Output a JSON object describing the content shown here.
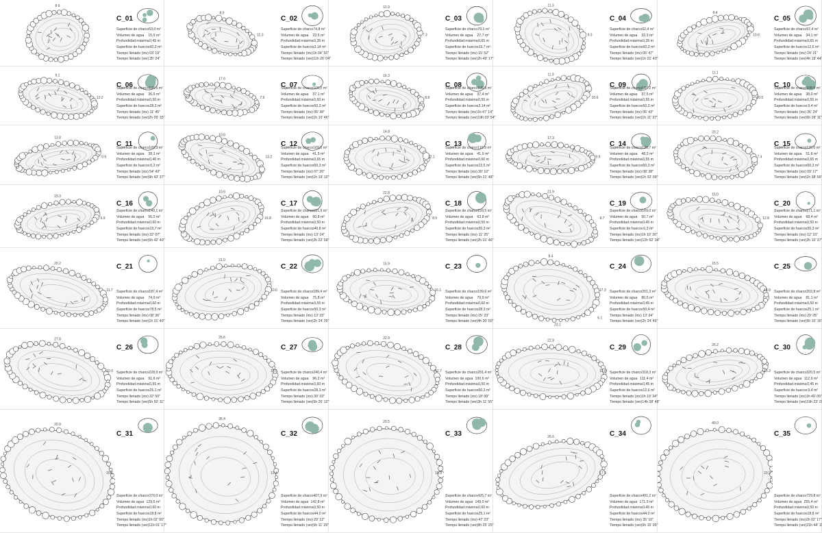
{
  "field_labels": [
    "Superficie de charco",
    "Volumen de agua",
    "Profundidad máxima",
    "Superficie de huecos",
    "Tiempo llenado (inv)",
    "Tiempo llenado (ver)"
  ],
  "cards": [
    {
      "id": "C_01",
      "values": [
        "53,0 m²",
        "15,9 m³",
        "0,45 m",
        "50,3 m²",
        "03' 19\"",
        "35' 24\""
      ],
      "dims": [
        "8.6"
      ]
    },
    {
      "id": "C_02",
      "values": [
        "74,8 m²",
        "22,5 m³",
        "0,35 m",
        "3,14 m²",
        "1h 04' 16\"",
        "11h 26' 04\""
      ],
      "dims": [
        "8.5",
        "11.3"
      ]
    },
    {
      "id": "C_03",
      "values": [
        "79,1 m²",
        "27,7 m³",
        "0,65 m",
        "15,7 m²",
        "15' 52\"",
        "2h 49' 17\""
      ],
      "dims": [
        "12.9",
        "7.3"
      ]
    },
    {
      "id": "C_04",
      "values": [
        "92,4 m²",
        "32,3 m³",
        "0,35 m",
        "50,3 m²",
        "05' 47\"",
        "1h 01' 43\""
      ],
      "dims": [
        "11.3",
        "9.3"
      ]
    },
    {
      "id": "C_05",
      "values": [
        "97,4 m²",
        "34,1 m³",
        "0,65 m",
        "12,6 m²",
        "24' 21\"",
        "4h 19' 44\""
      ],
      "dims": [
        "8.4",
        "10.6"
      ]
    },
    {
      "id": "C_06",
      "values": [
        "105,5 m²",
        "36,9 m³",
        "0,50 m",
        "28,3 m²",
        "11' 45\"",
        "2h 05' 15\""
      ],
      "dims": [
        "9.1",
        "12.2"
      ]
    },
    {
      "id": "C_07",
      "values": [
        "106,0 m²",
        "37,1 m³",
        "0,60 m",
        "50,3 m²",
        "06' 38\"",
        "1h 10' 46\""
      ],
      "dims": [
        "17.6",
        "7.9"
      ]
    },
    {
      "id": "C_08",
      "values": [
        "106,9 m²",
        "37,4 m³",
        "0,55 m",
        "3,14 m²",
        "1h 47' 14\"",
        "19h 03' 54\""
      ],
      "dims": [
        "16.3",
        "8.8"
      ]
    },
    {
      "id": "C_09",
      "values": [
        "107,2 m²",
        "37,5 m³",
        "0,55 m",
        "50,3 m²",
        "06' 43\"",
        "1h 11' 37\""
      ],
      "dims": [
        "11.9",
        "10.6"
      ]
    },
    {
      "id": "C_10",
      "values": [
        "108,6 m²",
        "38,0 m³",
        "0,55 m",
        "9,4 m²",
        "36' 24\"",
        "6h 28' 11\""
      ],
      "dims": [
        "11.1",
        "10.5"
      ]
    },
    {
      "id": "C_11",
      "values": [
        "109,3 m²",
        "38,3 m³",
        "0,40 m",
        "6,3 m²",
        "54' 43\"",
        "9h 43' 37\""
      ],
      "dims": [
        "13.8",
        "9.9"
      ]
    },
    {
      "id": "C_12",
      "values": [
        "109,5 m²",
        "41,5 m³",
        "0,65 m",
        "50,3 m²",
        "07' 26\"",
        "1h 19' 12\""
      ],
      "dims": [
        "10.8",
        "13.2"
      ]
    },
    {
      "id": "C_13",
      "values": [
        "110,9 m²",
        "41,9 m³",
        "0,60 m",
        "12,5 m²",
        "30' 10\"",
        "5h 21' 48\""
      ],
      "dims": [
        "14.8",
        "12.1"
      ]
    },
    {
      "id": "C_14",
      "values": [
        "120,7 m²",
        "48,3 m³",
        "0,55 m",
        "50,3 m²",
        "08' 38\"",
        "1h 32' 09\""
      ],
      "dims": [
        "17.3",
        "9.9"
      ]
    },
    {
      "id": "C_15",
      "values": [
        "129,6 m²",
        "51,8 m³",
        "0,65 m",
        "50,3 m²",
        "09' 17\"",
        "1h 38' 56\""
      ],
      "dims": [
        "20.2",
        "7.4"
      ]
    },
    {
      "id": "C_16",
      "values": [
        "140,1 m²",
        "56,0 m³",
        "0,60 m",
        "15,7 m²",
        "32' 07\"",
        "5h 42' 40\""
      ],
      "dims": [
        "23.3",
        "6.9"
      ]
    },
    {
      "id": "C_17",
      "values": [
        "151,9 m²",
        "60,8 m³",
        "0,50 m",
        "40,8 m²",
        "13' 24\"",
        "2h 22' 58\""
      ],
      "dims": [
        "10.6",
        "16.8"
      ]
    },
    {
      "id": "C_18",
      "values": [
        "159,5 m²",
        "63,8 m³",
        "0,55 m",
        "50,3 m²",
        "11' 25\"",
        "2h 01' 46\""
      ],
      "dims": [
        "22.8",
        "8.5"
      ]
    },
    {
      "id": "C_19",
      "values": [
        "169,0 m²",
        "50,7 m³",
        "0,45 m",
        "6,3 m²",
        "1h 10' 26\"",
        "12h 52' 34\""
      ],
      "dims": [
        "21.9",
        "8.7"
      ]
    },
    {
      "id": "C_20",
      "values": [
        "171,1 m²",
        "68,4 m³",
        "0,50 m",
        "50,3 m²",
        "12' 15\"",
        "2h 10' 37\""
      ],
      "dims": [
        "15.0",
        "12.8"
      ]
    },
    {
      "id": "C_21",
      "values": [
        "187,4 m²",
        "74,9 m³",
        "0,60 m",
        "78,5 m²",
        "08' 36\"",
        "1h 31' 40\""
      ],
      "dims": [
        "20.2",
        "11.7"
      ]
    },
    {
      "id": "C_22",
      "values": [
        "189,4 m²",
        "75,8 m³",
        "0,55 m",
        "50,3 m²",
        "13' 33\"",
        "2h 24' 35\""
      ],
      "dims": [
        "21.0",
        "10.6"
      ]
    },
    {
      "id": "C_23",
      "values": [
        "199,6 m²",
        "79,9 m³",
        "0,60 m",
        "28,3 m²",
        "25' 23\"",
        "4h 30' 50\""
      ],
      "dims": [
        "15.9",
        "16.1"
      ]
    },
    {
      "id": "C_24",
      "values": [
        "201,3 m²",
        "80,5 m³",
        "0,45 m",
        "50,4 m²",
        "13' 34\"",
        "2h 24' 45\""
      ],
      "dims": [
        "8.4",
        "17.3",
        "23.1",
        "6.1"
      ]
    },
    {
      "id": "C_25",
      "values": [
        "202,8 m²",
        "81,1 m³",
        "0,50 m",
        "25,1 m²",
        "29' 05\"",
        "5h 10' 16\""
      ],
      "dims": [
        "15.5",
        "14.6"
      ]
    },
    {
      "id": "C_26",
      "values": [
        "228,9 m²",
        "91,6 m³",
        "0,55 m",
        "25,1 m²",
        "32' 50\"",
        "5h 50' 11\""
      ],
      "dims": [
        "27.8",
        "10.0"
      ]
    },
    {
      "id": "C_27",
      "values": [
        "240,4 m²",
        "96,2 m³",
        "0,60 m",
        "28,3 m²",
        "30' 33\"",
        "5h 26' 12\""
      ],
      "dims": [
        "25.6",
        "15.5"
      ]
    },
    {
      "id": "C_28",
      "values": [
        "251,4 m²",
        "100,6 m³",
        "0,50 m",
        "50,3 m²",
        "18' 00\"",
        "3h 11' 55\""
      ],
      "dims": [
        "22.9",
        "12.7"
      ]
    },
    {
      "id": "C_29",
      "values": [
        "318,3 m²",
        "111,4 m³",
        "0,45 m",
        "12,6 m²",
        "1h 19' 34\"",
        "14h 08' 48\""
      ],
      "dims": [
        "22.9",
        "13.8"
      ]
    },
    {
      "id": "C_30",
      "values": [
        "320,5 m²",
        "112,9 m³",
        "0,45 m",
        "9,4 m²",
        "1h 49' 05\"",
        "19h 23' 29\""
      ],
      "dims": [
        "26.2",
        "13.3"
      ]
    },
    {
      "id": "C_31",
      "values": [
        "370,0 m²",
        "129,5 m³",
        "0,60 m",
        "18,8 m²",
        "1h 02' 00\"",
        "11h 01' 17\""
      ],
      "dims": [
        "20.9",
        "20.6"
      ]
    },
    {
      "id": "C_32",
      "values": [
        "407,9 m²",
        "142,8 m³",
        "0,50 m",
        "44,0 m²",
        "29' 12\"",
        "5h 11' 29\""
      ],
      "dims": [
        "35.4",
        "13.4"
      ]
    },
    {
      "id": "C_33",
      "values": [
        "425,7 m²",
        "149,0 m³",
        "0,60 m",
        "25,1 m²",
        "47' 23\"",
        "8h 25' 25\""
      ],
      "dims": [
        "20.5",
        "18.9"
      ]
    },
    {
      "id": "C_34",
      "values": [
        "491,2 m²",
        "171,9 m³",
        "0,45 m",
        "44,0 m²",
        "35' 10\"",
        "6h 15' 05\""
      ],
      "dims": [
        "26.6",
        "17.5"
      ]
    },
    {
      "id": "C_35",
      "values": [
        "729,8 m²",
        "255,4 m³",
        "0,50 m",
        "18,8 m²",
        "2h 02' 17\"",
        "21h 44' 19\""
      ],
      "dims": [
        "40.0",
        "23.9"
      ]
    }
  ]
}
